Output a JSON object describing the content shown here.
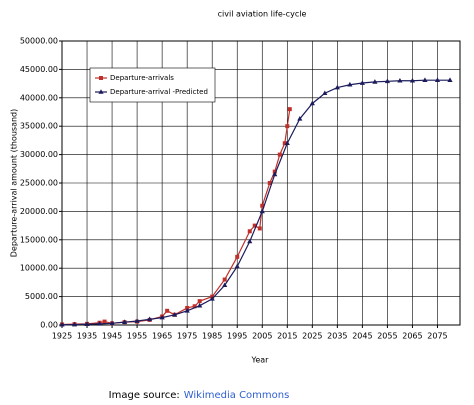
{
  "chart_data": {
    "type": "line",
    "title": "civil aviation  life-cycle",
    "x_label": "Year",
    "y_label": "Departure-arrival amount (thousand)",
    "xlim": [
      1925,
      2084
    ],
    "ylim": [
      0,
      50000
    ],
    "xticks": [
      1925,
      1935,
      1945,
      1955,
      1965,
      1975,
      1985,
      1995,
      2005,
      2015,
      2025,
      2035,
      2045,
      2055,
      2065,
      2075
    ],
    "yticks": [
      {
        "value": 0,
        "label": "0.00"
      },
      {
        "value": 5000,
        "label": "5000.00"
      },
      {
        "value": 10000,
        "label": "10000.00"
      },
      {
        "value": 15000,
        "label": "15000.00"
      },
      {
        "value": 20000,
        "label": "20000.00"
      },
      {
        "value": 25000,
        "label": "25000.00"
      },
      {
        "value": 30000,
        "label": "30000.00"
      },
      {
        "value": 35000,
        "label": "35000.00"
      },
      {
        "value": 40000,
        "label": "40000.00"
      },
      {
        "value": 45000,
        "label": "45000.00"
      },
      {
        "value": 50000,
        "label": "50000.00"
      }
    ],
    "grid": true,
    "legend": "upper left",
    "series": [
      {
        "name": "Departure-arrivals",
        "color": "#c0302a",
        "marker": "square",
        "x": [
          1925,
          1930,
          1935,
          1940,
          1942,
          1945,
          1950,
          1955,
          1960,
          1965,
          1967,
          1970,
          1975,
          1978,
          1980,
          1985,
          1990,
          1995,
          2000,
          2002,
          2004,
          2005,
          2008,
          2010,
          2012,
          2014,
          2015,
          2016
        ],
        "values": [
          100,
          150,
          200,
          400,
          600,
          300,
          500,
          600,
          900,
          1500,
          2500,
          1800,
          3000,
          3300,
          4200,
          5000,
          8000,
          12000,
          16500,
          17500,
          17000,
          21000,
          25000,
          27000,
          30000,
          32000,
          35000,
          38000
        ]
      },
      {
        "name": "Departure-arrival -Predicted",
        "color": "#1c1c5c",
        "marker": "triangle",
        "x": [
          1925,
          1930,
          1935,
          1940,
          1945,
          1950,
          1955,
          1960,
          1965,
          1970,
          1975,
          1980,
          1985,
          1990,
          1995,
          2000,
          2005,
          2010,
          2015,
          2020,
          2025,
          2030,
          2035,
          2040,
          2045,
          2050,
          2055,
          2060,
          2065,
          2070,
          2075,
          2080
        ],
        "values": [
          50,
          80,
          130,
          200,
          300,
          500,
          700,
          1000,
          1300,
          1800,
          2500,
          3400,
          4600,
          7000,
          10300,
          14700,
          20000,
          26500,
          32000,
          36300,
          39000,
          40800,
          41800,
          42300,
          42600,
          42800,
          42900,
          43000,
          43000,
          43100,
          43100,
          43100
        ]
      }
    ]
  },
  "source": {
    "text": "Image source:",
    "link": "Wikimedia Commons"
  }
}
